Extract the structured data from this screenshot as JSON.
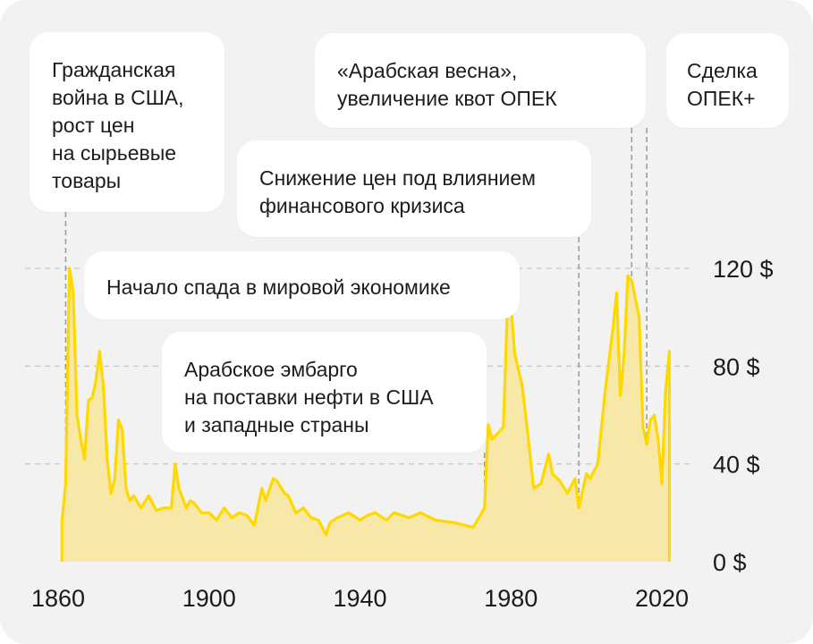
{
  "chart_data": {
    "type": "area",
    "x_ticks": [
      "1860",
      "1900",
      "1940",
      "1980",
      "2020"
    ],
    "y_ticks": [
      "0 $",
      "40 $",
      "80 $",
      "120 $"
    ],
    "xlim": [
      1860,
      2020
    ],
    "ylim": [
      0,
      120
    ],
    "grid": "dashed horizontal",
    "colors": {
      "line": "#ffd800",
      "fill": "#f7e8a8",
      "guide": "#9e9e9e",
      "background": "#f2f2f2"
    },
    "x": [
      1861,
      1862,
      1863,
      1864,
      1865,
      1866,
      1867,
      1868,
      1869,
      1870,
      1871,
      1872,
      1873,
      1874,
      1875,
      1876,
      1877,
      1878,
      1879,
      1880,
      1882,
      1884,
      1886,
      1888,
      1890,
      1891,
      1892,
      1894,
      1895,
      1896,
      1898,
      1900,
      1902,
      1904,
      1906,
      1908,
      1910,
      1912,
      1914,
      1915,
      1917,
      1918,
      1920,
      1921,
      1923,
      1925,
      1927,
      1929,
      1931,
      1932,
      1934,
      1937,
      1940,
      1942,
      1944,
      1947,
      1949,
      1953,
      1956,
      1960,
      1965,
      1970,
      1973,
      1974,
      1975,
      1978,
      1979,
      1980,
      1981,
      1983,
      1985,
      1986,
      1988,
      1990,
      1991,
      1993,
      1995,
      1997,
      1998,
      2000,
      2001,
      2003,
      2005,
      2007,
      2008,
      2009,
      2010,
      2011,
      2012,
      2014,
      2015,
      2016,
      2017,
      2018,
      2019,
      2020,
      2021,
      2022
    ],
    "values": [
      16,
      32,
      120,
      110,
      60,
      50,
      42,
      66,
      67,
      74,
      86,
      72,
      42,
      28,
      34,
      58,
      54,
      30,
      25,
      27,
      22,
      27,
      21,
      22,
      22,
      40,
      30,
      22,
      25,
      24,
      20,
      20,
      17,
      22,
      18,
      20,
      19,
      15,
      30,
      25,
      34,
      33,
      28,
      27,
      20,
      22,
      18,
      17,
      11,
      16,
      18,
      20,
      17,
      19,
      20,
      17,
      20,
      18,
      20,
      17,
      16,
      14,
      22,
      56,
      50,
      55,
      100,
      105,
      85,
      72,
      45,
      30,
      32,
      44,
      36,
      33,
      28,
      34,
      22,
      36,
      34,
      40,
      70,
      95,
      110,
      68,
      85,
      117,
      115,
      100,
      55,
      48,
      58,
      60,
      50,
      32,
      70,
      86
    ]
  },
  "annotations": [
    {
      "id": "civil-war",
      "text": "Гражданская\nвойна в США,\nрост цен\nна сырьевые\nтовары"
    },
    {
      "id": "arab-spring",
      "text": "«Арабская весна»,\nувеличение квот ОПЕК"
    },
    {
      "id": "opec-plus",
      "text": "Сделка\nОПЕК+"
    },
    {
      "id": "financial-crisis",
      "text": "Снижение цен под влиянием\nфинансового кризиса"
    },
    {
      "id": "world-recession",
      "text": "Начало спада в мировой экономике"
    },
    {
      "id": "arab-embargo",
      "text": "Арабское эмбарго\nна поставки нефти в США\nи западные страны"
    }
  ]
}
